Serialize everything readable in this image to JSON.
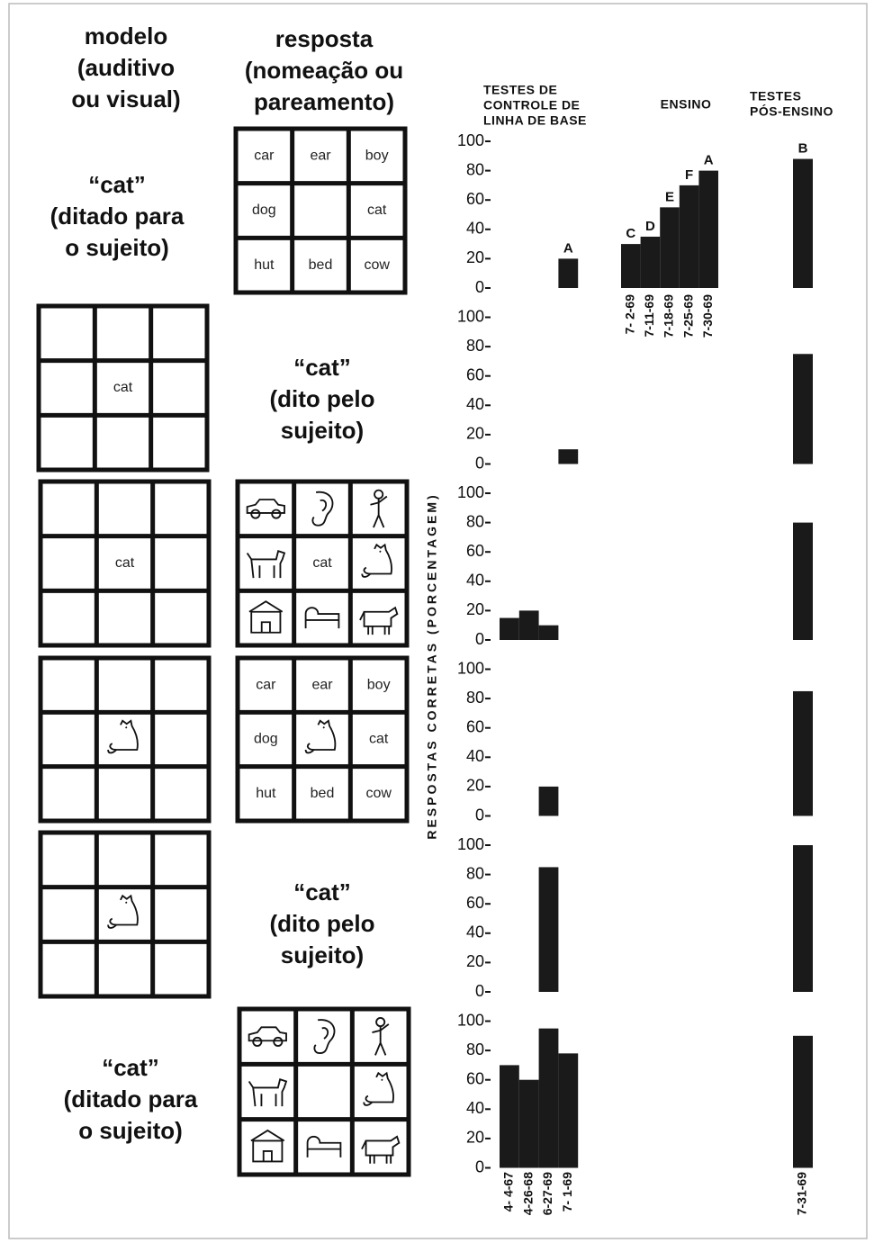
{
  "headers": {
    "model": [
      "modelo",
      "(auditivo",
      "ou visual)"
    ],
    "response": [
      "resposta",
      "(nomeação ou",
      "pareamento)"
    ]
  },
  "rows": [
    {
      "model_text": [
        "“cat”",
        "(ditado para",
        "o sujeito)"
      ],
      "response_grid": [
        "car",
        "ear",
        "boy",
        "dog",
        null,
        "cat",
        "hut",
        "bed",
        "cow"
      ]
    },
    {
      "model_grid": [
        null,
        null,
        null,
        null,
        "cat",
        null,
        null,
        null,
        null
      ],
      "response_text": [
        "“cat”",
        "(dito pelo",
        "sujeito)"
      ]
    },
    {
      "model_grid": [
        null,
        null,
        null,
        null,
        "cat",
        null,
        null,
        null,
        null
      ],
      "response_grid": [
        null,
        null,
        null,
        null,
        "cat",
        null,
        null,
        null,
        null
      ]
    },
    {
      "response_grid": [
        "car",
        "ear",
        "boy",
        "dog",
        null,
        "cat",
        "hut",
        "bed",
        "cow"
      ]
    },
    {
      "response_text": [
        "“cat”",
        "(dito pelo",
        "sujeito)"
      ]
    },
    {
      "model_text": [
        "“cat”",
        "(ditado para",
        "o sujeito)"
      ]
    }
  ],
  "phases": {
    "baseline": [
      "TESTES DE",
      "CONTROLE DE",
      "LINHA DE BASE"
    ],
    "teaching": [
      "ENSINO"
    ],
    "post": [
      "TESTES",
      "PÓS-ENSINO"
    ]
  },
  "sessions": {
    "baseline": [
      "4- 4-67",
      "4-26-68",
      "6-27-69",
      "7- 1-69"
    ],
    "teaching": [
      "7- 2-69",
      "7-11-69",
      "7-18-69",
      "7-25-69",
      "7-30-69"
    ],
    "post": [
      "7-31-69"
    ]
  },
  "y_label": "RESPOSTAS CORRETAS (PORCENTAGEM)",
  "chart_data": [
    {
      "type": "bar",
      "color": "#1a1a1a",
      "ylim": [
        0,
        100
      ],
      "yticks": [
        0,
        20,
        40,
        60,
        80,
        100
      ],
      "baseline": [
        null,
        null,
        null,
        20
      ],
      "baseline_labels": [
        null,
        null,
        null,
        "A"
      ],
      "teaching": [
        30,
        35,
        55,
        70,
        80
      ],
      "teaching_labels": [
        "C",
        "D",
        "E",
        "F",
        "A"
      ],
      "post": [
        88
      ],
      "post_labels": [
        "B"
      ]
    },
    {
      "type": "bar",
      "color": "#1a1a1a",
      "ylim": [
        0,
        100
      ],
      "yticks": [
        0,
        20,
        40,
        60,
        80,
        100
      ],
      "baseline": [
        null,
        null,
        null,
        10
      ],
      "post": [
        75
      ]
    },
    {
      "type": "bar",
      "color": "#1a1a1a",
      "ylim": [
        0,
        100
      ],
      "yticks": [
        0,
        20,
        40,
        60,
        80,
        100
      ],
      "baseline": [
        15,
        20,
        10,
        null
      ],
      "post": [
        80
      ]
    },
    {
      "type": "bar",
      "color": "#1a1a1a",
      "ylim": [
        0,
        100
      ],
      "yticks": [
        0,
        20,
        40,
        60,
        80,
        100
      ],
      "baseline": [
        null,
        null,
        20,
        null
      ],
      "post": [
        85
      ]
    },
    {
      "type": "bar",
      "color": "#1a1a1a",
      "ylim": [
        0,
        100
      ],
      "yticks": [
        0,
        20,
        40,
        60,
        80,
        100
      ],
      "baseline": [
        null,
        null,
        85,
        null
      ],
      "post": [
        100
      ]
    },
    {
      "type": "bar",
      "color": "#1a1a1a",
      "ylim": [
        0,
        100
      ],
      "yticks": [
        0,
        20,
        40,
        60,
        80,
        100
      ],
      "baseline": [
        70,
        60,
        95,
        78
      ],
      "post": [
        90
      ]
    }
  ]
}
